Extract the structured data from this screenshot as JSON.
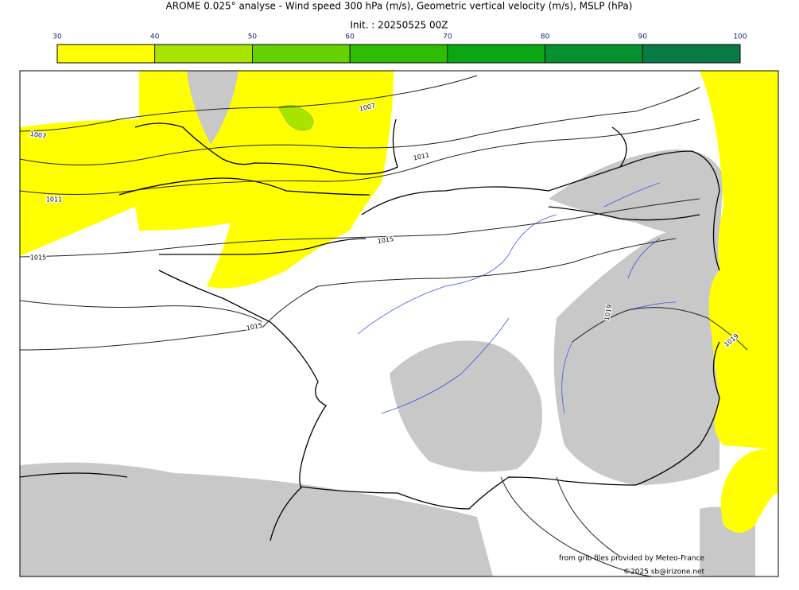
{
  "header": {
    "title": "AROME 0.025° analyse - Wind speed 300 hPa (m/s), Geometric vertical velocity (m/s), MSLP (hPa)",
    "init": "Init. : 20250525 00Z"
  },
  "colorbar": {
    "ticks": [
      30,
      40,
      50,
      60,
      70,
      80,
      90,
      100
    ],
    "colors": [
      "#ffff00",
      "#a8e400",
      "#66d000",
      "#2ebc00",
      "#0ba614",
      "#06902e",
      "#087a44",
      "#087050"
    ]
  },
  "isobar_labels": [
    "1007",
    "1007",
    "1011",
    "1011",
    "1015",
    "1015",
    "1015",
    "1019",
    "1019"
  ],
  "credits": {
    "source": "from grib files provided by Meteo-France",
    "copyright": "©2025 sb@irizone.net"
  }
}
